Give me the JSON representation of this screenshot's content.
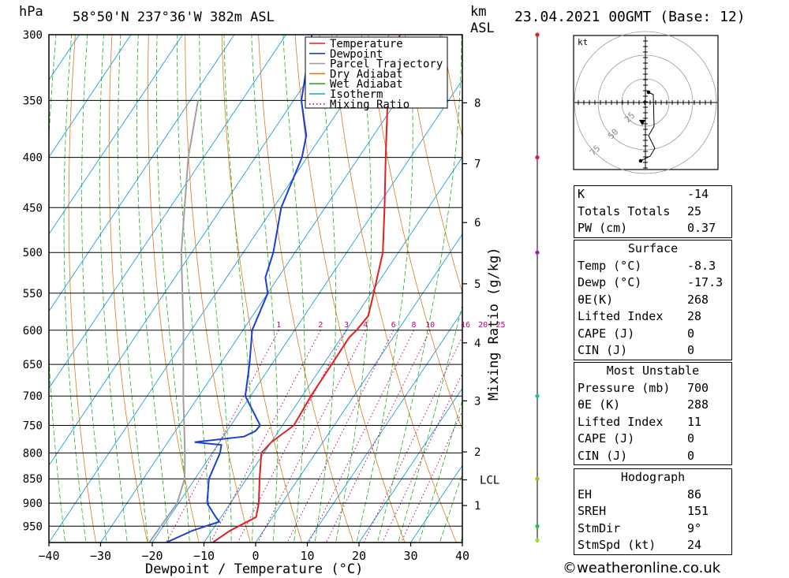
{
  "header": {
    "hpa_label": "hPa",
    "location": "58°50'N  237°36'W  382m  ASL",
    "km_label": "km",
    "asl_label": "ASL",
    "datetime": "23.04.2021  00GMT  (Base: 12)"
  },
  "colors": {
    "temperature": "#e02020",
    "dewpoint": "#1a3fd6",
    "parcel": "#a0a0a0",
    "dry_adiabat": "#e07a1a",
    "wet_adiabat": "#20b020",
    "isotherm": "#1aa0e0",
    "mixing_ratio": "#c0007a"
  },
  "legend": [
    {
      "label": "Temperature",
      "key": "temperature",
      "style": "solid"
    },
    {
      "label": "Dewpoint",
      "key": "dewpoint",
      "style": "solid"
    },
    {
      "label": "Parcel Trajectory",
      "key": "parcel",
      "style": "solid"
    },
    {
      "label": "Dry Adiabat",
      "key": "dry_adiabat",
      "style": "solid"
    },
    {
      "label": "Wet Adiabat",
      "key": "wet_adiabat",
      "style": "solid"
    },
    {
      "label": "Isotherm",
      "key": "isotherm",
      "style": "solid"
    },
    {
      "label": "Mixing Ratio",
      "key": "mixing_ratio",
      "style": "dotted"
    }
  ],
  "chart_data": {
    "type": "line",
    "xlabel": "Dewpoint / Temperature (°C)",
    "right_axis_label": "Mixing Ratio (g/kg)",
    "x_ticks": [
      -40,
      -30,
      -20,
      -10,
      0,
      10,
      20,
      30,
      40
    ],
    "xlim": [
      -40,
      40
    ],
    "pressure_ticks": [
      300,
      350,
      400,
      450,
      500,
      550,
      600,
      650,
      700,
      750,
      800,
      850,
      900,
      950
    ],
    "pressure_range": [
      300,
      987
    ],
    "y_scale": "log",
    "km_ticks": [
      {
        "label": "8",
        "p": 352
      },
      {
        "label": "7",
        "p": 406
      },
      {
        "label": "6",
        "p": 466
      },
      {
        "label": "5",
        "p": 538
      },
      {
        "label": "4",
        "p": 618
      },
      {
        "label": "3",
        "p": 708
      },
      {
        "label": "2",
        "p": 798
      },
      {
        "label": "LCL",
        "p": 852
      },
      {
        "label": "1",
        "p": 905
      }
    ],
    "mixing_ratio_labels": [
      "1",
      "2",
      "3",
      "4",
      "6",
      "8",
      "10",
      "16",
      "20",
      "25"
    ],
    "mixing_ratio_values": [
      1,
      2,
      3,
      4,
      6,
      8,
      10,
      16,
      20,
      25
    ],
    "series": [
      {
        "name": "Temperature",
        "key": "temperature",
        "points": [
          [
            987,
            -8.3
          ],
          [
            960,
            -6.5
          ],
          [
            930,
            -3.2
          ],
          [
            900,
            -4.5
          ],
          [
            850,
            -7.5
          ],
          [
            800,
            -10.5
          ],
          [
            780,
            -10.0
          ],
          [
            750,
            -7.8
          ],
          [
            700,
            -8.3
          ],
          [
            650,
            -8.4
          ],
          [
            610,
            -8.5
          ],
          [
            600,
            -8.0
          ],
          [
            580,
            -7.6
          ],
          [
            550,
            -9.5
          ],
          [
            500,
            -13.0
          ],
          [
            450,
            -18.5
          ],
          [
            400,
            -24.8
          ],
          [
            350,
            -31.8
          ],
          [
            300,
            -38.0
          ]
        ]
      },
      {
        "name": "Dewpoint",
        "key": "dewpoint",
        "points": [
          [
            987,
            -17.3
          ],
          [
            960,
            -13.8
          ],
          [
            940,
            -9.7
          ],
          [
            930,
            -11.0
          ],
          [
            900,
            -14.5
          ],
          [
            850,
            -17.3
          ],
          [
            800,
            -18.5
          ],
          [
            785,
            -19.3
          ],
          [
            780,
            -24.8
          ],
          [
            770,
            -16.0
          ],
          [
            760,
            -14.5
          ],
          [
            750,
            -14.3
          ],
          [
            700,
            -21.0
          ],
          [
            650,
            -24.3
          ],
          [
            600,
            -28.2
          ],
          [
            550,
            -30.0
          ],
          [
            530,
            -32.5
          ],
          [
            500,
            -34.2
          ],
          [
            450,
            -38.5
          ],
          [
            400,
            -41.0
          ],
          [
            380,
            -43.0
          ],
          [
            350,
            -48.5
          ],
          [
            300,
            -55.0
          ]
        ]
      },
      {
        "name": "Parcel Trajectory",
        "key": "parcel",
        "points": [
          [
            987,
            -20.6
          ],
          [
            900,
            -20.3
          ],
          [
            850,
            -22.0
          ],
          [
            800,
            -25.3
          ],
          [
            700,
            -33.0
          ],
          [
            600,
            -41.5
          ],
          [
            500,
            -52.0
          ],
          [
            400,
            -63.0
          ],
          [
            350,
            -68.5
          ]
        ]
      }
    ]
  },
  "wind_markers": [
    {
      "p": 300,
      "color": "#e02020"
    },
    {
      "p": 400,
      "color": "#e01060"
    },
    {
      "p": 500,
      "color": "#9020c0"
    },
    {
      "p": 700,
      "color": "#20c0a0"
    },
    {
      "p": 850,
      "color": "#a0c020"
    },
    {
      "p": 950,
      "color": "#20c040"
    },
    {
      "p": 1000,
      "color": "#a0e020"
    }
  ],
  "hodograph": {
    "unit": "kt",
    "ring_labels": [
      "25",
      "50",
      "75"
    ]
  },
  "tables": {
    "indices": [
      {
        "label": "K",
        "value": "-14"
      },
      {
        "label": "Totals Totals",
        "value": "25"
      },
      {
        "label": "PW (cm)",
        "value": "0.37"
      }
    ],
    "surface": {
      "title": "Surface",
      "rows": [
        {
          "label": "Temp (°C)",
          "value": "-8.3"
        },
        {
          "label": "Dewp (°C)",
          "value": "-17.3"
        },
        {
          "label": "θE(K)",
          "value": "268"
        },
        {
          "label": "Lifted Index",
          "value": "28"
        },
        {
          "label": "CAPE (J)",
          "value": "0"
        },
        {
          "label": "CIN (J)",
          "value": "0"
        }
      ]
    },
    "most_unstable": {
      "title": "Most Unstable",
      "rows": [
        {
          "label": "Pressure (mb)",
          "value": "700"
        },
        {
          "label": "θE (K)",
          "value": "288"
        },
        {
          "label": "Lifted Index",
          "value": "11"
        },
        {
          "label": "CAPE (J)",
          "value": "0"
        },
        {
          "label": "CIN (J)",
          "value": "0"
        }
      ]
    },
    "hodograph": {
      "title": "Hodograph",
      "rows": [
        {
          "label": "EH",
          "value": "86"
        },
        {
          "label": "SREH",
          "value": "151"
        },
        {
          "label": "StmDir",
          "value": "9°"
        },
        {
          "label": "StmSpd (kt)",
          "value": "24"
        }
      ]
    }
  },
  "footer": {
    "copyright": "©weatheronline.co.uk"
  }
}
